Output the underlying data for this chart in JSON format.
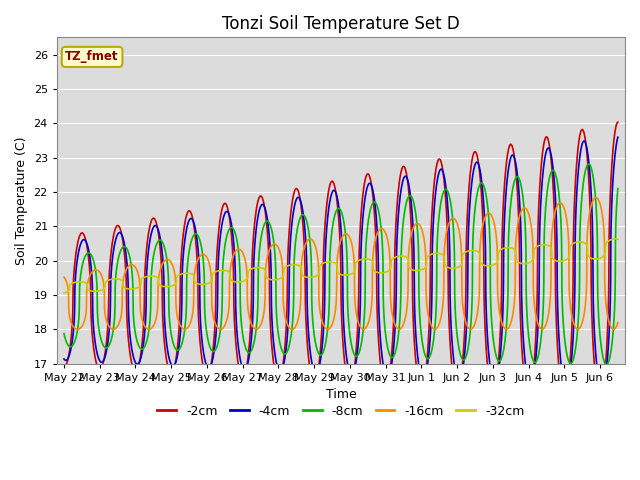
{
  "title": "Tonzi Soil Temperature Set D",
  "xlabel": "Time",
  "ylabel": "Soil Temperature (C)",
  "ylim": [
    17.0,
    26.5
  ],
  "x_tick_labels": [
    "May 22",
    "May 23",
    "May 24",
    "May 25",
    "May 26",
    "May 27",
    "May 28",
    "May 29",
    "May 30",
    "May 31",
    "Jun 1",
    "Jun 2",
    "Jun 3",
    "Jun 4",
    "Jun 5",
    "Jun 6"
  ],
  "legend_label": "TZ_fmet",
  "series_labels": [
    "-2cm",
    "-4cm",
    "-8cm",
    "-16cm",
    "-32cm"
  ],
  "series_colors": [
    "#cc0000",
    "#0000cc",
    "#00bb00",
    "#ff8800",
    "#cccc00"
  ],
  "line_widths": [
    1.2,
    1.2,
    1.2,
    1.2,
    1.2
  ],
  "bg_color": "#dcdcdc",
  "fig_color": "#ffffff",
  "grid_color": "#ffffff",
  "title_fontsize": 12,
  "axis_label_fontsize": 9,
  "tick_fontsize": 8
}
